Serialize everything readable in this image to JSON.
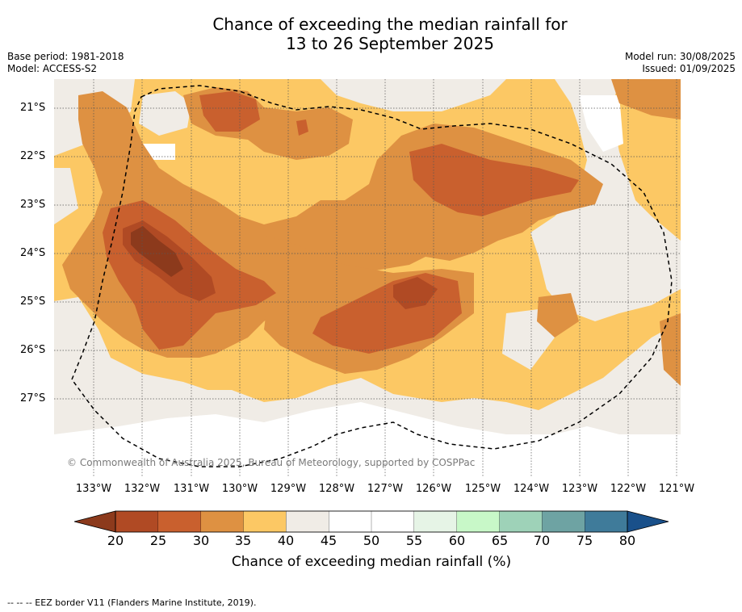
{
  "title_line1": "Chance of exceeding the median rainfall for",
  "title_line2": "13 to 26 September 2025",
  "base_period": "Base period: 1981-2018",
  "model": "Model: ACCESS-S2",
  "model_run": "Model run: 30/08/2025",
  "issued": "Issued: 01/09/2025",
  "copyright": "© Commonwealth of Australia 2025, Bureau of Meteorology, supported by COSPPac",
  "lat_labels": [
    "21°S",
    "22°S",
    "23°S",
    "24°S",
    "25°S",
    "26°S",
    "27°S"
  ],
  "lon_labels": [
    "133°W",
    "132°W",
    "131°W",
    "130°W",
    "129°W",
    "128°W",
    "127°W",
    "126°W",
    "125°W",
    "124°W",
    "123°W",
    "122°W",
    "121°W"
  ],
  "colorbar": {
    "title": "Chance of exceeding median rainfall (%)",
    "ticks": [
      "20",
      "25",
      "30",
      "35",
      "40",
      "45",
      "50",
      "55",
      "60",
      "65",
      "70",
      "75",
      "80"
    ],
    "colors": [
      "#8c3a1c",
      "#b04a24",
      "#c9602e",
      "#de9142",
      "#fcc864",
      "#f0ece6",
      "#ffffff",
      "#ffffff",
      "#e6f4e6",
      "#c8f8c8",
      "#9ed2b8",
      "#6ea3a3",
      "#3f7b9a",
      "#19508a"
    ],
    "under_color": "#8c3a1c",
    "over_color": "#19508a"
  },
  "eez_note": "--  --  -- EEZ border V11 (Flanders Marine Institute, 2019)."
}
